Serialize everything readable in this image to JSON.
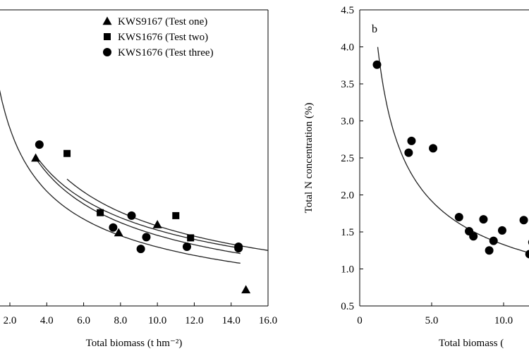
{
  "chart_data": [
    {
      "type": "scatter",
      "panel_label": "",
      "xlabel": "Total biomass (t hm⁻²)",
      "ylabel": "",
      "xlim": [
        1.0,
        16.0
      ],
      "ylim": [
        0.5,
        4.5
      ],
      "xticks": [
        2.0,
        4.0,
        6.0,
        8.0,
        10.0,
        12.0,
        14.0,
        16.0
      ],
      "xtick_labels": [
        "2.0",
        "4.0",
        "6.0",
        "8.0",
        "10.0",
        "12.0",
        "14.0",
        "16.0"
      ],
      "legend_position": "top-right",
      "series": [
        {
          "name": "KWS9167 (Test one)",
          "marker": "triangle",
          "points": [
            [
              3.4,
              2.5
            ],
            [
              7.9,
              1.49
            ],
            [
              10.0,
              1.6
            ],
            [
              14.8,
              0.72
            ]
          ],
          "fit": {
            "a": 4.6,
            "b": -0.5,
            "x_range": [
              3.4,
              14.5
            ]
          }
        },
        {
          "name": "KWS1676 (Test two)",
          "marker": "square",
          "points": [
            [
              5.1,
              2.56
            ],
            [
              6.9,
              1.76
            ],
            [
              11.0,
              1.72
            ],
            [
              11.8,
              1.42
            ]
          ],
          "fit": {
            "a": 5.0,
            "b": -0.5,
            "x_range": [
              5.1,
              16.0
            ]
          }
        },
        {
          "name": "KWS1676 (Test three)",
          "marker": "circle",
          "points": [
            [
              3.6,
              2.68
            ],
            [
              7.6,
              1.56
            ],
            [
              8.6,
              1.72
            ],
            [
              9.1,
              1.27
            ],
            [
              9.4,
              1.43
            ],
            [
              11.6,
              1.3
            ],
            [
              14.4,
              1.3
            ],
            [
              14.4,
              1.28
            ]
          ],
          "fit": {
            "a": 4.5,
            "b": -0.47,
            "x_range": [
              3.6,
              14.5
            ]
          }
        }
      ],
      "extra_curves": [
        {
          "a": 4.1,
          "b": -0.5,
          "x_range": [
            0.9,
            14.5
          ]
        }
      ]
    },
    {
      "type": "scatter",
      "panel_label": "b",
      "xlabel": "Total biomass (",
      "ylabel": "Total N concentration (%)",
      "xlim": [
        0.0,
        12.0
      ],
      "ylim": [
        0.5,
        4.5
      ],
      "xticks": [
        0.0,
        5.0,
        10.0
      ],
      "xtick_labels": [
        "0",
        "5.0",
        "10.0"
      ],
      "yticks": [
        0.5,
        1.0,
        1.5,
        2.0,
        2.5,
        3.0,
        3.5,
        4.0,
        4.5
      ],
      "ytick_labels": [
        "0.5",
        "1.0",
        "1.5",
        "2.0",
        "2.5",
        "3.0",
        "3.5",
        "4.0",
        "4.5"
      ],
      "series": [
        {
          "name": "",
          "marker": "circle",
          "points": [
            [
              1.2,
              3.76
            ],
            [
              3.4,
              2.57
            ],
            [
              3.6,
              2.73
            ],
            [
              5.1,
              2.63
            ],
            [
              6.9,
              1.7
            ],
            [
              7.6,
              1.51
            ],
            [
              7.9,
              1.44
            ],
            [
              8.6,
              1.67
            ],
            [
              9.0,
              1.25
            ],
            [
              9.3,
              1.38
            ],
            [
              9.9,
              1.52
            ],
            [
              11.4,
              1.66
            ],
            [
              11.8,
              1.2
            ],
            [
              12.0,
              1.36
            ]
          ]
        }
      ],
      "extra_curves": [
        {
          "a": 4.5,
          "b": -0.53,
          "x_range": [
            1.25,
            12.0
          ]
        }
      ]
    }
  ]
}
